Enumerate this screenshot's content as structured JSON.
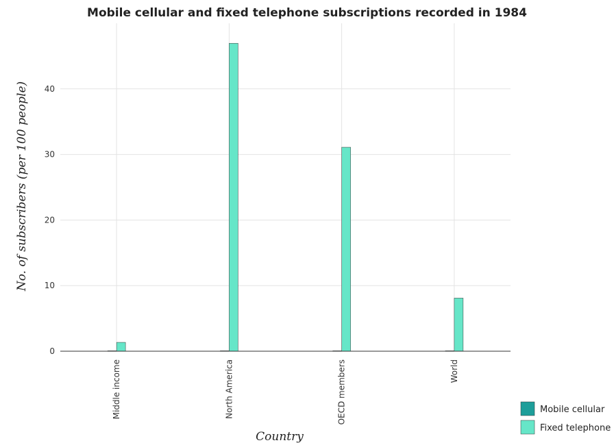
{
  "chart_data": {
    "type": "bar",
    "title": "Mobile cellular and fixed telephone subscriptions recorded in 1984",
    "xlabel": "Country",
    "ylabel": "No. of subscribers (per 100 people)",
    "categories": [
      "Middle income",
      "North America",
      "OECD members",
      "World"
    ],
    "series": [
      {
        "name": "Mobile cellular",
        "color": "#1e9e9a",
        "values": [
          0.0,
          0.04,
          0.03,
          0.01
        ]
      },
      {
        "name": "Fixed telephone",
        "color": "#66e6c8",
        "values": [
          1.35,
          46.95,
          31.1,
          8.1
        ]
      }
    ],
    "ylim": [
      0,
      50
    ],
    "yticks": [
      0,
      10,
      20,
      30,
      40
    ],
    "grid": true,
    "legend_position": "bottom-right"
  }
}
